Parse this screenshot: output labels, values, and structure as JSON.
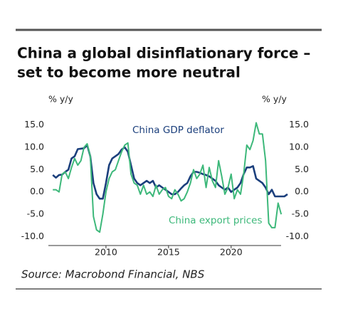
{
  "chart_data": {
    "type": "line",
    "title": [
      "China a global disinflationary force –",
      "set to become more neutral"
    ],
    "y_label": "% y/y",
    "y2_label": "% y/y",
    "source": "Source: Macrobond Financial, NBS",
    "annotations": [
      "China GDP deflator",
      "China export prices"
    ],
    "xlim": [
      2005.4,
      2024.9
    ],
    "xticks": [
      2010,
      2015,
      2020
    ],
    "ylim": [
      -12,
      17.5
    ],
    "yticks": [
      {
        "value": 15,
        "label": "15.0"
      },
      {
        "value": 10,
        "label": "10.0"
      },
      {
        "value": 5,
        "label": "5.0"
      },
      {
        "value": 0,
        "label": "0.0"
      },
      {
        "value": -5,
        "label": "-5.0"
      },
      {
        "value": -10,
        "label": "-10.0"
      }
    ],
    "y2lim": [
      -12,
      17.5
    ],
    "y2ticks": [
      {
        "value": 15,
        "label": "15.0"
      },
      {
        "value": 10,
        "label": "10.0"
      },
      {
        "value": 5,
        "label": "5.0"
      },
      {
        "value": 0,
        "label": "0.0"
      },
      {
        "value": -5,
        "label": "-5.0"
      },
      {
        "value": -10,
        "label": "-10.0"
      }
    ],
    "series": [
      {
        "name": "China GDP deflator",
        "color": "#1b3f7c",
        "x": [
          2005.75,
          2006,
          2006.25,
          2006.5,
          2006.75,
          2007,
          2007.25,
          2007.5,
          2007.75,
          2008,
          2008.25,
          2008.5,
          2008.75,
          2009,
          2009.25,
          2009.5,
          2009.75,
          2010,
          2010.25,
          2010.5,
          2010.75,
          2011,
          2011.25,
          2011.5,
          2011.75,
          2012,
          2012.25,
          2012.5,
          2012.75,
          2013,
          2013.25,
          2013.5,
          2013.75,
          2014,
          2014.25,
          2014.5,
          2014.75,
          2015,
          2015.25,
          2015.5,
          2015.75,
          2016,
          2016.25,
          2016.5,
          2016.75,
          2017,
          2017.25,
          2017.5,
          2017.75,
          2018,
          2018.25,
          2018.5,
          2018.75,
          2019,
          2019.25,
          2019.5,
          2019.75,
          2020,
          2020.25,
          2020.5,
          2020.75,
          2021,
          2021.25,
          2021.5,
          2021.75,
          2022,
          2022.25,
          2022.5,
          2022.75,
          2023,
          2023.25,
          2023.5,
          2023.75,
          2024,
          2024.25,
          2024.5
        ],
        "values": [
          3.8,
          3.2,
          3.8,
          3.9,
          4.5,
          5.0,
          7.5,
          8.0,
          9.6,
          9.7,
          9.8,
          10.5,
          8.0,
          2.0,
          -0.5,
          -1.5,
          -1.5,
          2.0,
          6.0,
          7.5,
          8.0,
          8.5,
          9.5,
          10.0,
          9.0,
          6.0,
          3.0,
          2.0,
          1.5,
          2.0,
          2.5,
          2.0,
          2.5,
          1.0,
          1.5,
          1.0,
          0.5,
          0.0,
          -0.5,
          -0.5,
          0.0,
          0.8,
          1.5,
          2.0,
          3.5,
          4.5,
          4.5,
          4.3,
          4.0,
          3.8,
          3.5,
          3.0,
          2.5,
          1.5,
          1.0,
          0.5,
          1.0,
          0.0,
          0.5,
          1.0,
          2.0,
          4.0,
          5.5,
          5.5,
          5.8,
          3.0,
          2.5,
          2.0,
          1.0,
          -0.5,
          0.5,
          -1.0,
          -1.0,
          -1.0,
          -1.0,
          -0.5
        ]
      },
      {
        "name": "China export prices",
        "color": "#3db87a",
        "x": [
          2005.75,
          2006,
          2006.25,
          2006.5,
          2006.75,
          2007,
          2007.25,
          2007.5,
          2007.75,
          2008,
          2008.25,
          2008.5,
          2008.75,
          2009,
          2009.25,
          2009.5,
          2009.75,
          2010,
          2010.25,
          2010.5,
          2010.75,
          2011,
          2011.25,
          2011.5,
          2011.75,
          2012,
          2012.25,
          2012.5,
          2012.75,
          2013,
          2013.25,
          2013.5,
          2013.75,
          2014,
          2014.25,
          2014.5,
          2014.75,
          2015,
          2015.25,
          2015.5,
          2015.75,
          2016,
          2016.25,
          2016.5,
          2016.75,
          2017,
          2017.25,
          2017.5,
          2017.75,
          2018,
          2018.25,
          2018.5,
          2018.75,
          2019,
          2019.25,
          2019.5,
          2019.75,
          2020,
          2020.25,
          2020.5,
          2020.75,
          2021,
          2021.25,
          2021.5,
          2021.75,
          2022,
          2022.25,
          2022.5,
          2022.75,
          2023,
          2023.25,
          2023.5,
          2023.75,
          2024
        ],
        "values": [
          0.5,
          0.5,
          0,
          4.0,
          4.5,
          3.0,
          5.5,
          7.5,
          6.0,
          7.0,
          10.0,
          10.8,
          8.0,
          -5.5,
          -8.5,
          -9.0,
          -5.0,
          0,
          3.0,
          4.5,
          5.0,
          7.0,
          9.0,
          10.5,
          11.0,
          4.0,
          2.0,
          1.5,
          -0.5,
          1.5,
          -0.5,
          0.0,
          -1.0,
          1.5,
          -0.5,
          0.5,
          1.0,
          -1.0,
          -1.5,
          0.5,
          -0.5,
          -2.0,
          -1.5,
          0.0,
          2.0,
          5.0,
          3.0,
          4.0,
          6.0,
          1.0,
          5.5,
          2.5,
          1.0,
          7.0,
          3.5,
          -0.5,
          1.0,
          4.0,
          -1.5,
          0.5,
          -0.5,
          4.0,
          10.5,
          9.5,
          11.5,
          15.5,
          13.0,
          13.0,
          7.0,
          -7.0,
          -8.0,
          -8.0,
          -2.5,
          -5.0
        ]
      }
    ]
  }
}
